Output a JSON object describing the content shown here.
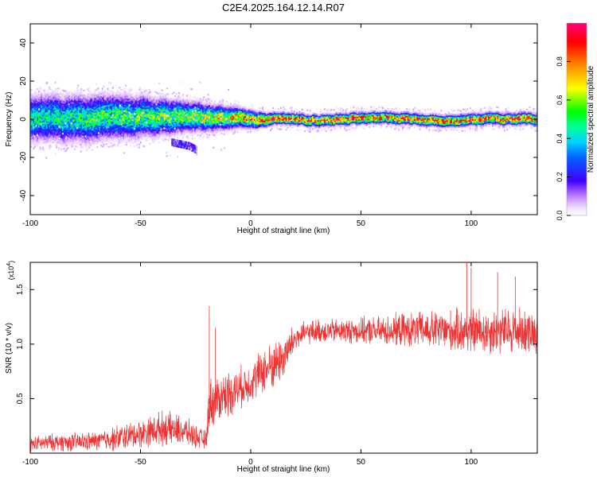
{
  "figure": {
    "title": "C2E4.2025.164.12.14.R07"
  },
  "colorbar": {
    "label": "Normalized spectral amplitude",
    "range": [
      0.0,
      1.0
    ],
    "ticks": [
      "0.0",
      "0.2",
      "0.4",
      "0.6",
      "0.8"
    ],
    "tick_values": [
      0.0,
      0.2,
      0.4,
      0.6,
      0.8
    ]
  },
  "colors": {
    "snr_line": "#ee3333",
    "colormap": [
      "#ffffff",
      "#e6ccff",
      "#aa66ff",
      "#2200ff",
      "#00ccff",
      "#00ff66",
      "#ffff00",
      "#ff8800",
      "#ff0033",
      "#ff0066"
    ]
  },
  "chart_data": [
    {
      "type": "heatmap",
      "xlabel": "Height of straight line (km)",
      "ylabel": "Frequency (Hz)",
      "xlim": [
        -100,
        130
      ],
      "ylim": [
        -50,
        50
      ],
      "xticks": [
        -100,
        -50,
        0,
        50,
        100
      ],
      "yticks": [
        -40,
        -20,
        0,
        20,
        40
      ],
      "grid": false,
      "description_of_values": "Spectral energy concentrated near 0 Hz across the full height range; broad spread (about -10 to +10 Hz) below -20 km, narrow high-amplitude band (about -2 to +2 Hz) from 0 to 130 km; faint diagonal branch descending from about -12 Hz at -35 km to -16 Hz at -25 km.",
      "band": {
        "x": [
          -100,
          -75,
          -50,
          -25,
          0,
          10,
          25,
          50,
          75,
          100,
          130
        ],
        "center_hz": [
          0,
          0,
          1,
          1,
          0,
          0,
          -1,
          0,
          0,
          0,
          0
        ],
        "halfwidth_hz": [
          8,
          8,
          7,
          5,
          3,
          2,
          2,
          2,
          2,
          2,
          2
        ],
        "peak_amplitude": [
          0.45,
          0.5,
          0.55,
          0.6,
          0.8,
          0.9,
          0.85,
          0.9,
          0.85,
          0.9,
          0.9
        ]
      },
      "branch": {
        "x": [
          -36,
          -32,
          -28,
          -25
        ],
        "y_hz": [
          -12,
          -13,
          -14,
          -16
        ]
      }
    },
    {
      "type": "line",
      "xlabel": "Height of straight line (km)",
      "ylabel": "SNR (10 * v/v)",
      "y_scale_label": "(x10⁴)",
      "y_scale_base": "(x10",
      "y_scale_exp": "4",
      "y_scale_close": ")",
      "xlim": [
        -100,
        130
      ],
      "ylim": [
        0.0,
        1.75
      ],
      "xticks": [
        -100,
        -50,
        0,
        50,
        100
      ],
      "yticks": [
        "0.5",
        "1.0",
        "1.5"
      ],
      "ytick_values": [
        0.5,
        1.0,
        1.5
      ],
      "grid": false,
      "series": [
        {
          "color": "#ee3333",
          "envelope_x": [
            -100,
            -90,
            -80,
            -70,
            -60,
            -50,
            -40,
            -30,
            -25,
            -20,
            -19,
            -15,
            -10,
            -5,
            0,
            5,
            10,
            15,
            20,
            25,
            30,
            40,
            50,
            60,
            70,
            80,
            90,
            100,
            110,
            120,
            130
          ],
          "envelope_mean": [
            0.08,
            0.1,
            0.1,
            0.11,
            0.14,
            0.18,
            0.23,
            0.2,
            0.15,
            0.12,
            0.45,
            0.5,
            0.55,
            0.6,
            0.65,
            0.75,
            0.8,
            0.88,
            1.05,
            1.1,
            1.12,
            1.12,
            1.12,
            1.12,
            1.13,
            1.13,
            1.12,
            1.12,
            1.12,
            1.12,
            1.12
          ],
          "envelope_spread": [
            0.08,
            0.09,
            0.1,
            0.1,
            0.14,
            0.15,
            0.18,
            0.16,
            0.12,
            0.1,
            0.28,
            0.25,
            0.25,
            0.22,
            0.2,
            0.25,
            0.25,
            0.25,
            0.15,
            0.12,
            0.13,
            0.13,
            0.14,
            0.16,
            0.18,
            0.2,
            0.22,
            0.25,
            0.25,
            0.25,
            0.22
          ],
          "peaks": [
            [
              -18.8,
              1.35
            ],
            [
              -16,
              1.15
            ],
            [
              98,
              1.75
            ],
            [
              100,
              1.7
            ],
            [
              112,
              1.66
            ],
            [
              120,
              1.62
            ]
          ]
        }
      ]
    }
  ]
}
